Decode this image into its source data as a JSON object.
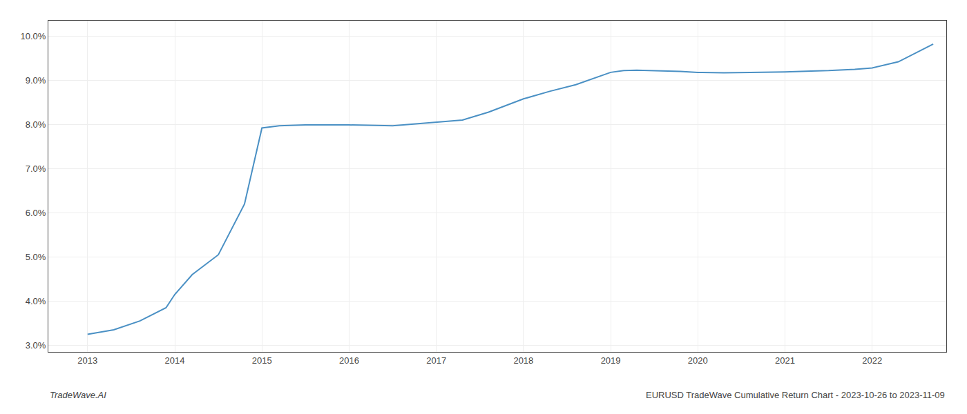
{
  "chart_data": {
    "type": "line",
    "x": [
      2013.0,
      2013.3,
      2013.6,
      2013.9,
      2014.0,
      2014.2,
      2014.5,
      2014.8,
      2015.0,
      2015.2,
      2015.5,
      2016.0,
      2016.5,
      2017.0,
      2017.3,
      2017.6,
      2018.0,
      2018.3,
      2018.6,
      2019.0,
      2019.15,
      2019.3,
      2019.5,
      2019.8,
      2020.0,
      2020.3,
      2020.6,
      2021.0,
      2021.3,
      2021.5,
      2021.8,
      2022.0,
      2022.3,
      2022.7
    ],
    "values": [
      3.25,
      3.35,
      3.55,
      3.85,
      4.15,
      4.6,
      5.05,
      6.2,
      7.92,
      7.97,
      7.99,
      7.99,
      7.97,
      8.05,
      8.1,
      8.28,
      8.58,
      8.75,
      8.9,
      9.18,
      9.22,
      9.23,
      9.22,
      9.2,
      9.18,
      9.17,
      9.18,
      9.19,
      9.21,
      9.22,
      9.25,
      9.28,
      9.42,
      9.82
    ],
    "color": "#4a90c4",
    "xlim": [
      2012.55,
      2022.85
    ],
    "xticks": [
      2013,
      2014,
      2015,
      2016,
      2017,
      2018,
      2019,
      2020,
      2021,
      2022
    ],
    "ylim": [
      2.85,
      10.35
    ],
    "yticks": [
      {
        "value": 3.0,
        "label": "3.0%"
      },
      {
        "value": 4.0,
        "label": "4.0%"
      },
      {
        "value": 5.0,
        "label": "5.0%"
      },
      {
        "value": 6.0,
        "label": "6.0%"
      },
      {
        "value": 7.0,
        "label": "7.0%"
      },
      {
        "value": 8.0,
        "label": "8.0%"
      },
      {
        "value": 9.0,
        "label": "9.0%"
      },
      {
        "value": 10.0,
        "label": "10.0%"
      }
    ],
    "grid": true,
    "annotations": [
      "TradeWave.AI",
      "EURUSD TradeWave Cumulative Return Chart - 2023-10-26 to 2023-11-09"
    ]
  }
}
